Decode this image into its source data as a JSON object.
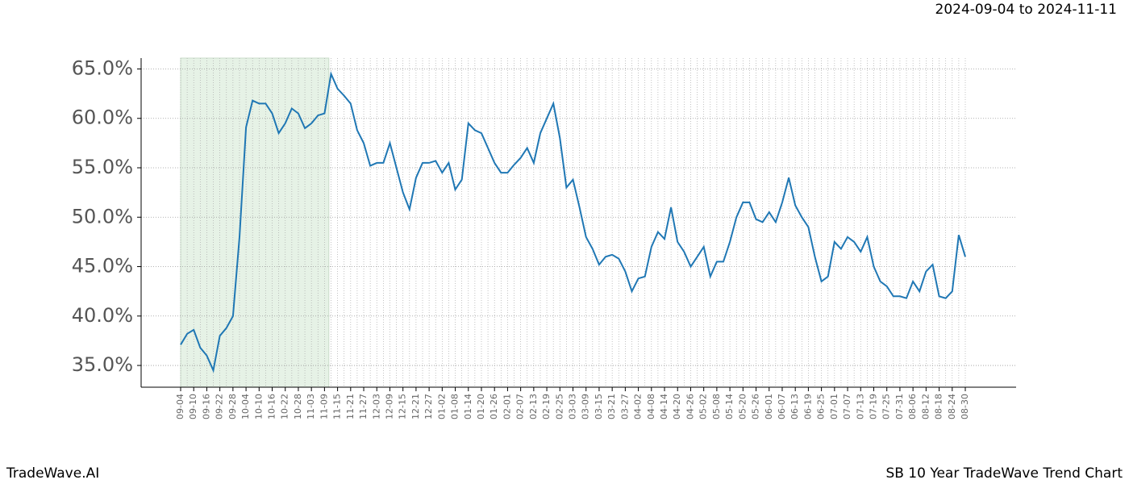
{
  "chart_data": {
    "type": "line",
    "title": {
      "start": "2024-09-04",
      "joiner": "to",
      "end": "2024-11-11"
    },
    "footer_left": "TradeWave.AI",
    "footer_right": "SB 10 Year TradeWave Trend Chart",
    "highlight_color": "#e6f2e6",
    "grid": true,
    "categories": [
      "09-04",
      null,
      "09-10",
      null,
      "09-16",
      null,
      "09-22",
      null,
      "09-28",
      null,
      "10-04",
      null,
      "10-10",
      null,
      "10-16",
      null,
      "10-22",
      null,
      "10-28",
      null,
      "11-03",
      null,
      "11-09",
      null,
      "11-15",
      null,
      "11-21",
      null,
      "11-27",
      null,
      "12-03",
      null,
      "12-09",
      null,
      "12-15",
      null,
      "12-21",
      null,
      "12-27",
      null,
      "01-02",
      null,
      "01-08",
      null,
      "01-14",
      null,
      "01-20",
      null,
      "01-26",
      null,
      "02-01",
      null,
      "02-07",
      null,
      "02-13",
      null,
      "02-19",
      null,
      "02-25",
      null,
      "03-03",
      null,
      "03-09",
      null,
      "03-15",
      null,
      "03-21",
      null,
      "03-27",
      null,
      "04-02",
      null,
      "04-08",
      null,
      "04-14",
      null,
      "04-20",
      null,
      "04-26",
      null,
      "05-02",
      null,
      "05-08",
      null,
      "05-14",
      null,
      "05-20",
      null,
      "05-26",
      null,
      "06-01",
      null,
      "06-07",
      null,
      "06-13",
      null,
      "06-19",
      null,
      "06-25",
      null,
      "07-01",
      null,
      "07-07",
      null,
      "07-13",
      null,
      "07-19",
      null,
      "07-25",
      null,
      "07-31",
      null,
      "08-06",
      null,
      "08-12",
      null,
      "08-18",
      null,
      "08-24",
      null,
      "08-30"
    ],
    "series": [
      {
        "name": "SB",
        "color": "#1f77b4",
        "values": [
          37.1,
          38.2,
          38.6,
          36.8,
          36.0,
          34.5,
          38.0,
          38.8,
          40.0,
          48.0,
          59.1,
          61.8,
          61.5,
          61.5,
          60.5,
          58.5,
          59.5,
          61.0,
          60.5,
          59.0,
          59.5,
          60.3,
          60.5,
          64.5,
          63.0,
          62.3,
          61.5,
          58.8,
          57.5,
          55.2,
          55.5,
          55.5,
          57.5,
          55.0,
          52.5,
          50.8,
          54.0,
          55.5,
          55.5,
          55.7,
          54.5,
          55.5,
          52.8,
          53.8,
          59.5,
          58.8,
          58.5,
          57.0,
          55.5,
          54.5,
          54.5,
          55.3,
          56.0,
          57.0,
          55.5,
          58.5,
          60.0,
          61.5,
          58.0,
          53.0,
          53.8,
          51.0,
          48.0,
          46.8,
          45.2,
          46.0,
          46.2,
          45.8,
          44.5,
          42.5,
          43.8,
          44.0,
          47.0,
          48.5,
          47.8,
          51.0,
          47.5,
          46.5,
          45.0,
          46.0,
          47.0,
          44.0,
          45.5,
          45.5,
          47.5,
          50.0,
          51.5,
          51.5,
          49.8,
          49.5,
          50.5,
          49.5,
          51.5,
          54.0,
          51.2,
          50.0,
          49.0,
          46.0,
          43.5,
          44.0,
          47.5,
          46.8,
          48.0,
          47.5,
          46.5,
          48.0,
          45.0,
          43.5,
          43.0,
          42.0,
          42.0,
          41.8,
          43.5,
          42.5,
          44.5,
          45.2,
          42.0,
          41.8,
          42.5,
          48.2,
          46.0
        ]
      }
    ],
    "ylim": [
      32.8,
      66.1
    ],
    "yticks": [
      {
        "value": 35,
        "label": "35.0%"
      },
      {
        "value": 40,
        "label": "40.0%"
      },
      {
        "value": 45,
        "label": "45.0%"
      },
      {
        "value": 50,
        "label": "50.0%"
      },
      {
        "value": 55,
        "label": "55.0%"
      },
      {
        "value": 60,
        "label": "60.0%"
      },
      {
        "value": 65,
        "label": "65.0%"
      }
    ]
  }
}
